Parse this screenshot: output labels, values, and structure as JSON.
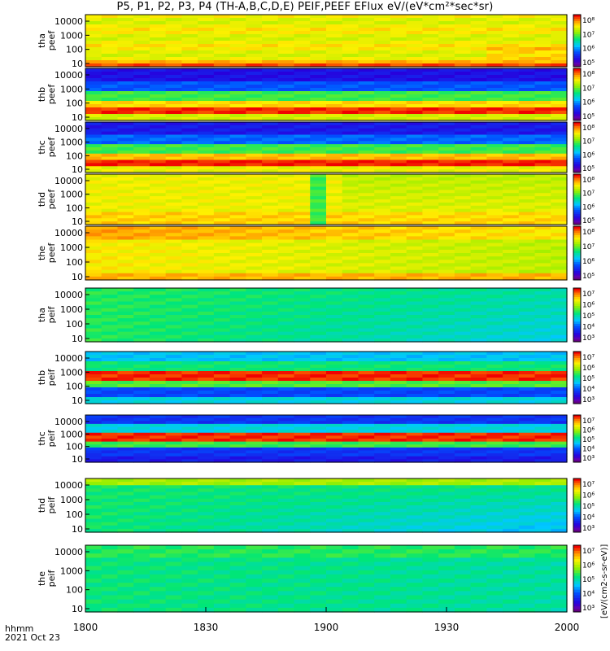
{
  "chart_data": {
    "type": "heatmap",
    "title": "P5, P1, P2, P3, P4 (TH-A,B,C,D,E) PEIF,PEEF EFlux eV/(eV*cm²*sec*sr)",
    "x_axis": {
      "range": [
        1800,
        2000
      ],
      "ticks": [
        "1800",
        "1830",
        "1900",
        "1930",
        "2000"
      ],
      "label_line1": "hhmm",
      "label_line2": "2021 Oct 23"
    },
    "y_axis_ticks": [
      "10",
      "100",
      "1000",
      "10000"
    ],
    "y_scale": "log",
    "colorbar_label": "[eV/(cm2-s-sr-eV)]",
    "panels": [
      {
        "probe": "tha",
        "species": "peef",
        "cbar_ticks": [
          "10⁵",
          "10⁶",
          "10⁷",
          "10⁸"
        ]
      },
      {
        "probe": "thb",
        "species": "peef",
        "cbar_ticks": [
          "10⁵",
          "10⁶",
          "10⁷",
          "10⁸"
        ]
      },
      {
        "probe": "thc",
        "species": "peef",
        "cbar_ticks": [
          "10⁵",
          "10⁶",
          "10⁷",
          "10⁸"
        ]
      },
      {
        "probe": "thd",
        "species": "peef",
        "cbar_ticks": [
          "10⁵",
          "10⁶",
          "10⁷",
          "10⁸"
        ]
      },
      {
        "probe": "the",
        "species": "peef",
        "cbar_ticks": [
          "10⁵",
          "10⁶",
          "10⁷",
          "10⁸"
        ]
      },
      {
        "probe": "tha",
        "species": "peif",
        "cbar_ticks": [
          "10³",
          "10⁴",
          "10⁵",
          "10⁶",
          "10⁷"
        ]
      },
      {
        "probe": "thb",
        "species": "peif",
        "cbar_ticks": [
          "10³",
          "10⁴",
          "10⁵",
          "10⁶",
          "10⁷"
        ]
      },
      {
        "probe": "thc",
        "species": "peif",
        "cbar_ticks": [
          "10³",
          "10⁴",
          "10⁵",
          "10⁶",
          "10⁷"
        ]
      },
      {
        "probe": "thd",
        "species": "peif",
        "cbar_ticks": [
          "10³",
          "10⁴",
          "10⁵",
          "10⁶",
          "10⁷"
        ]
      },
      {
        "probe": "the",
        "species": "peif",
        "cbar_ticks": [
          "10³",
          "10⁴",
          "10⁵",
          "10⁶",
          "10⁷"
        ]
      }
    ]
  }
}
